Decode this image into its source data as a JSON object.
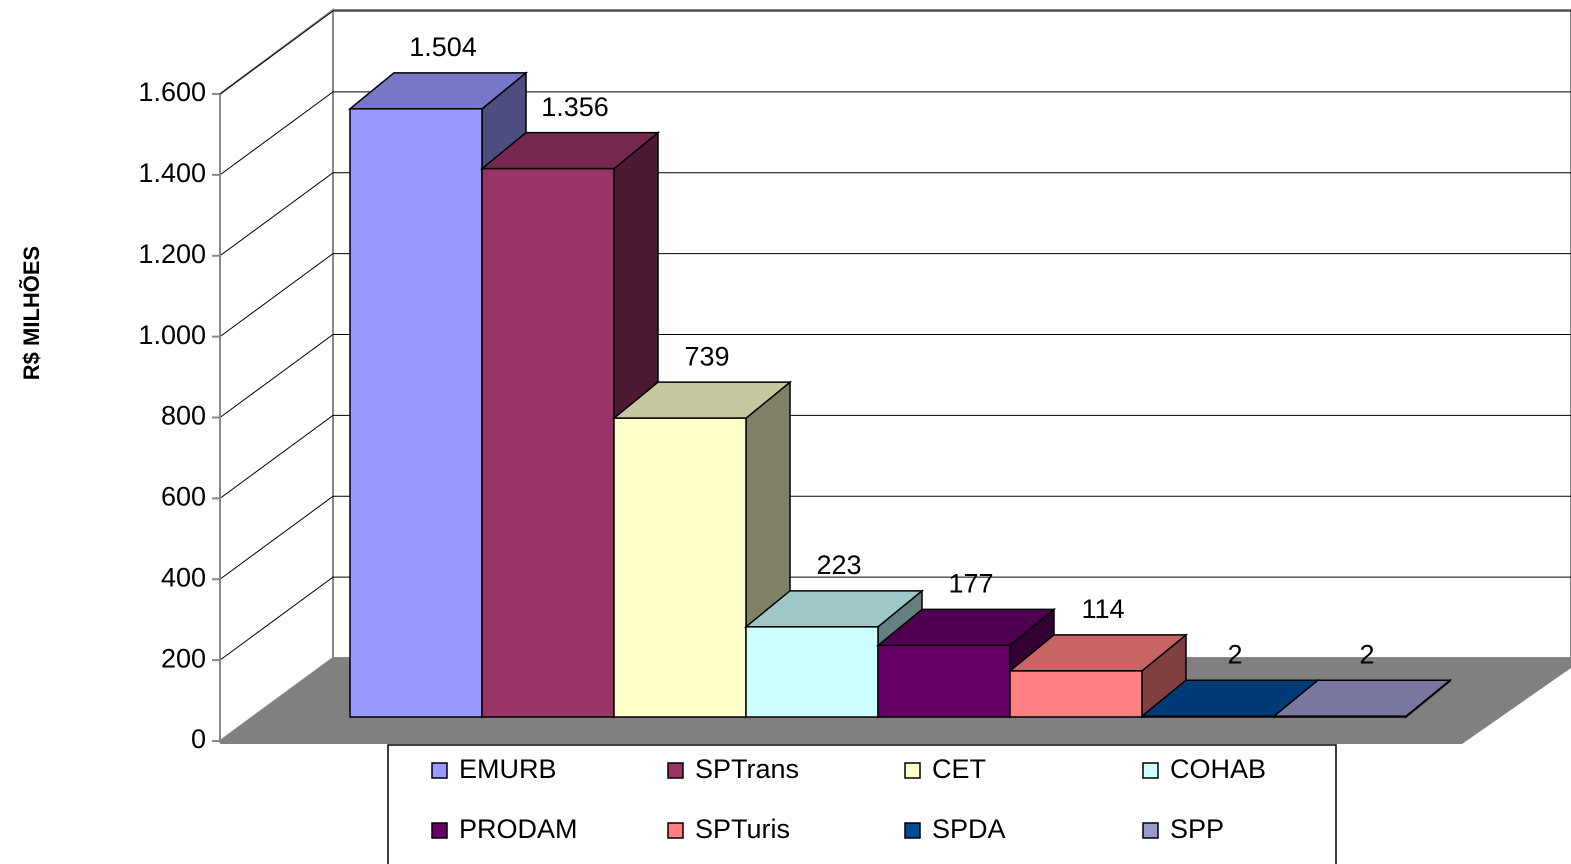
{
  "chart_data": {
    "type": "bar3d",
    "y_label": "R$ MILHÕES",
    "categories": [
      "EMURB",
      "SPTrans",
      "CET",
      "COHAB",
      "PRODAM",
      "SPTuris",
      "SPDA",
      "SPP"
    ],
    "values": [
      1504,
      1356,
      739,
      223,
      177,
      114,
      2,
      2
    ],
    "value_labels": [
      "1.504",
      "1.356",
      "739",
      "223",
      "177",
      "114",
      "2",
      "2"
    ],
    "colors": [
      "#9999ff",
      "#993366",
      "#ffffcc",
      "#ccffff",
      "#660066",
      "#ff8080",
      "#004c99",
      "#9999cc"
    ],
    "ylim": [
      0,
      1600
    ],
    "yticks": [
      0,
      200,
      400,
      600,
      800,
      {
        "value": 1000,
        "label": "1.000"
      },
      {
        "value": 1200,
        "label": "1.200"
      },
      {
        "value": 1400,
        "label": "1.400"
      },
      {
        "value": 1600,
        "label": "1.600"
      }
    ],
    "grid": true,
    "legend": "bottom"
  }
}
